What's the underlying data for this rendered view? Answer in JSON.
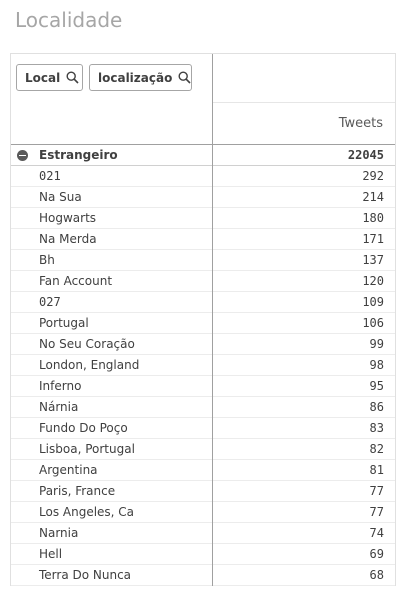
{
  "page": {
    "title": "Localidade"
  },
  "header": {
    "dimensions": [
      {
        "label": "Local",
        "icon": "search-icon"
      },
      {
        "label": "localização",
        "icon": "search-icon"
      }
    ],
    "measure_label": "Tweets"
  },
  "total": {
    "label": "Estrangeiro",
    "value": "22045",
    "icon": "collapse-icon"
  },
  "rows": [
    {
      "label": "021",
      "value": "292",
      "mono": true
    },
    {
      "label": "Na Sua",
      "value": "214"
    },
    {
      "label": "Hogwarts",
      "value": "180"
    },
    {
      "label": "Na Merda",
      "value": "171"
    },
    {
      "label": "Bh",
      "value": "137"
    },
    {
      "label": "Fan Account",
      "value": "120"
    },
    {
      "label": "027",
      "value": "109",
      "mono": true
    },
    {
      "label": "Portugal",
      "value": "106"
    },
    {
      "label": "No Seu Coração",
      "value": "99"
    },
    {
      "label": "London, England",
      "value": "98"
    },
    {
      "label": "Inferno",
      "value": "95"
    },
    {
      "label": "Nárnia",
      "value": "86"
    },
    {
      "label": "Fundo Do Poço",
      "value": "83"
    },
    {
      "label": "Lisboa, Portugal",
      "value": "82"
    },
    {
      "label": "Argentina",
      "value": "81"
    },
    {
      "label": "Paris, France",
      "value": "77"
    },
    {
      "label": "Los Angeles, Ca",
      "value": "77"
    },
    {
      "label": "Narnia",
      "value": "74"
    },
    {
      "label": "Hell",
      "value": "69"
    },
    {
      "label": "Terra Do Nunca",
      "value": "68"
    }
  ]
}
